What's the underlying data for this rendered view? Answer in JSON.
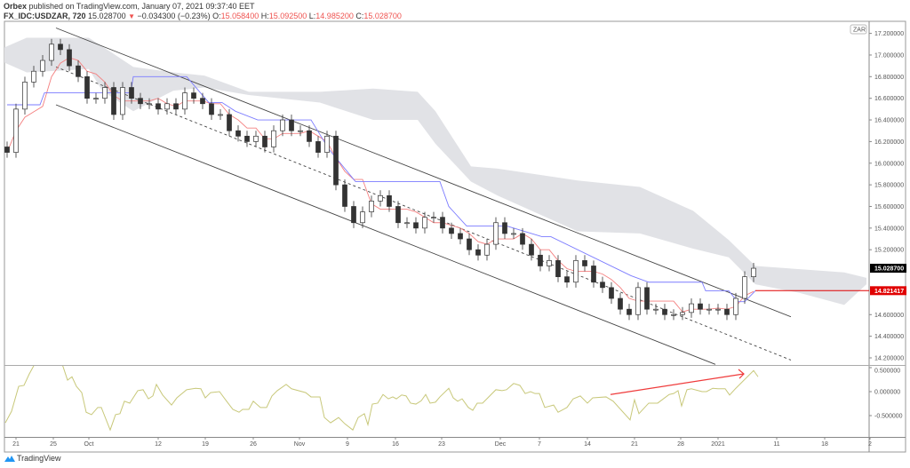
{
  "header": {
    "publisher": "Orbex",
    "published_text": "published on TradingView.com, January 07, 2021 09:37:40 EET",
    "symbol": "FX_IDC:USDZAR, 720",
    "last": "15.028700",
    "change": "−0.034300 (−0.23%)",
    "open_label": "O:",
    "open": "15.058400",
    "high_label": "H:",
    "high": "15.092500",
    "low_label": "L:",
    "low": "14.985200",
    "close_label": "C:",
    "close": "15.028700"
  },
  "footer": {
    "logo_text": "TradingView"
  },
  "colors": {
    "up": "#ffffff",
    "down": "#333333",
    "wick": "#333333",
    "cloud": "#e1e2e6",
    "kijun": "#7b7bff",
    "tenkan": "#f48080",
    "osc": "#c8c87a",
    "arrow": "#ef3b3b",
    "price_line": "#e00000",
    "last_bg": "#000000"
  },
  "chart_data": {
    "type": "candlestick",
    "currency_badge": "ZAR",
    "price_ticks": [
      "17.200000",
      "17.000000",
      "16.800000",
      "16.600000",
      "16.400000",
      "16.200000",
      "16.000000",
      "15.800000",
      "15.600000",
      "15.400000",
      "15.200000",
      "14.600000",
      "14.400000",
      "14.200000"
    ],
    "price_tick_values": [
      17.2,
      17.0,
      16.8,
      16.6,
      16.4,
      16.2,
      16.0,
      15.8,
      15.6,
      15.4,
      15.2,
      14.6,
      14.4,
      14.2
    ],
    "last_price_label": "15.028700",
    "last_price": 15.0287,
    "line_label": "14.821417",
    "line_price": 14.821417,
    "osc_ticks": [
      "0.500000",
      "0.000000",
      "-0.500000"
    ],
    "osc_tick_values": [
      0.5,
      0,
      -0.5
    ],
    "x_labels": [
      "21",
      "25",
      "Oct",
      "12",
      "19",
      "26",
      "Nov",
      "9",
      "16",
      "23",
      "Dec",
      "7",
      "14",
      "21",
      "28",
      "2021",
      "11",
      "18",
      "2"
    ],
    "closes": [
      16.1,
      16.5,
      16.75,
      16.85,
      16.95,
      17.1,
      17.05,
      16.9,
      16.8,
      16.6,
      16.6,
      16.7,
      16.45,
      16.7,
      16.6,
      16.55,
      16.55,
      16.5,
      16.55,
      16.5,
      16.65,
      16.6,
      16.55,
      16.45,
      16.45,
      16.3,
      16.25,
      16.2,
      16.25,
      16.15,
      16.3,
      16.4,
      16.3,
      16.3,
      16.2,
      16.1,
      16.25,
      15.8,
      15.6,
      15.45,
      15.55,
      15.65,
      15.7,
      15.6,
      15.45,
      15.45,
      15.4,
      15.5,
      15.5,
      15.4,
      15.35,
      15.3,
      15.2,
      15.15,
      15.25,
      15.45,
      15.35,
      15.35,
      15.25,
      15.15,
      15.05,
      15.1,
      14.95,
      14.9,
      15.1,
      15.05,
      14.9,
      14.85,
      14.75,
      14.65,
      14.6,
      14.85,
      14.65,
      14.65,
      14.6,
      14.6,
      14.62,
      14.7,
      14.65,
      14.65,
      14.65,
      14.6,
      14.75,
      14.95,
      15.0287
    ],
    "kijun": [
      [
        0,
        16.54
      ],
      [
        3.7,
        16.54
      ],
      [
        4.2,
        16.65
      ],
      [
        13.9,
        16.65
      ],
      [
        14.2,
        16.8
      ],
      [
        20.2,
        16.8
      ],
      [
        22.7,
        16.56
      ],
      [
        24.2,
        16.56
      ],
      [
        25.7,
        16.48
      ],
      [
        28.2,
        16.4
      ],
      [
        34.2,
        16.4
      ],
      [
        36.2,
        16.13
      ],
      [
        39.2,
        15.83
      ],
      [
        48.7,
        15.83
      ],
      [
        49.7,
        15.6
      ],
      [
        51.7,
        15.42
      ],
      [
        56.2,
        15.42
      ],
      [
        60.2,
        15.32
      ],
      [
        61.2,
        15.32
      ],
      [
        70.2,
        14.96
      ],
      [
        72.2,
        14.9
      ],
      [
        78.2,
        14.9
      ],
      [
        78.6,
        14.82
      ],
      [
        81.2,
        14.82
      ],
      [
        82.2,
        14.72
      ],
      [
        83,
        14.72
      ],
      [
        84.2,
        14.82
      ]
    ],
    "cloud_upper": [
      [
        -0.3,
        17.07
      ],
      [
        2.2,
        17.16
      ],
      [
        9.2,
        17.16
      ],
      [
        10.7,
        17.08
      ],
      [
        14.2,
        16.89
      ],
      [
        18.7,
        16.84
      ],
      [
        22.2,
        16.81
      ],
      [
        27.2,
        16.66
      ],
      [
        35.2,
        16.66
      ],
      [
        41.2,
        16.69
      ],
      [
        46.2,
        16.66
      ],
      [
        48.2,
        16.48
      ],
      [
        52.2,
        15.97
      ],
      [
        55.2,
        15.95
      ],
      [
        64.2,
        15.84
      ],
      [
        71.2,
        15.78
      ],
      [
        77.2,
        15.56
      ],
      [
        81.2,
        15.29
      ],
      [
        84.2,
        15.05
      ],
      [
        89.2,
        15.02
      ],
      [
        94.2,
        14.99
      ],
      [
        96.7,
        14.94
      ]
    ],
    "cloud_lower": [
      [
        -0.3,
        16.93
      ],
      [
        2.2,
        16.84
      ],
      [
        9.2,
        16.87
      ],
      [
        10.7,
        16.67
      ],
      [
        14.2,
        16.48
      ],
      [
        18.7,
        16.67
      ],
      [
        22.2,
        16.7
      ],
      [
        27.2,
        16.63
      ],
      [
        35.2,
        16.56
      ],
      [
        41.2,
        16.4
      ],
      [
        46.2,
        16.4
      ],
      [
        48.2,
        16.18
      ],
      [
        52.2,
        15.83
      ],
      [
        55.2,
        15.7
      ],
      [
        64.2,
        15.37
      ],
      [
        71.2,
        15.35
      ],
      [
        77.2,
        15.21
      ],
      [
        81.2,
        15.13
      ],
      [
        84.2,
        14.88
      ],
      [
        89.2,
        14.8
      ],
      [
        94.2,
        14.69
      ],
      [
        96.7,
        14.88
      ]
    ],
    "channel": {
      "upper": [
        [
          5.5,
          17.25
        ],
        [
          88.2,
          14.58
        ]
      ],
      "middle": [
        [
          5.5,
          16.89
        ],
        [
          88.2,
          14.18
        ]
      ],
      "lower": [
        [
          5.5,
          16.54
        ],
        [
          79.7,
          14.14
        ]
      ]
    },
    "oscillator": [
      [
        -0.2,
        -0.65
      ],
      [
        0.5,
        -0.41
      ],
      [
        1.3,
        0.11
      ],
      [
        1.9,
        0.13
      ],
      [
        2.5,
        0.37
      ],
      [
        3.0,
        0.54
      ],
      [
        3.7,
        0.76
      ],
      [
        5.2,
        0.94
      ],
      [
        6.3,
        0.52
      ],
      [
        6.8,
        0.24
      ],
      [
        7.3,
        0.31
      ],
      [
        7.8,
        0.11
      ],
      [
        8.4,
        -0.02
      ],
      [
        8.9,
        -0.43
      ],
      [
        9.5,
        -0.48
      ],
      [
        10.2,
        -0.33
      ],
      [
        10.6,
        -0.33
      ],
      [
        11.6,
        -0.8
      ],
      [
        12.2,
        -0.48
      ],
      [
        12.7,
        -0.46
      ],
      [
        13.2,
        -0.2
      ],
      [
        13.8,
        -0.24
      ],
      [
        14.7,
        0.02
      ],
      [
        15.3,
        0.04
      ],
      [
        15.9,
        -0.15
      ],
      [
        16.4,
        -0.09
      ],
      [
        16.8,
        0.15
      ],
      [
        17.5,
        -0.07
      ],
      [
        18.5,
        -0.28
      ],
      [
        19.1,
        -0.13
      ],
      [
        20.2,
        0.04
      ],
      [
        21.2,
        0.07
      ],
      [
        21.8,
        0.06
      ],
      [
        22.3,
        -0.13
      ],
      [
        22.9,
        -0.02
      ],
      [
        23.9,
        0
      ],
      [
        24.7,
        -0.2
      ],
      [
        25.4,
        -0.37
      ],
      [
        26.1,
        -0.43
      ],
      [
        26.5,
        -0.37
      ],
      [
        27.2,
        -0.37
      ],
      [
        27.7,
        -0.2
      ],
      [
        28.5,
        -0.33
      ],
      [
        29.2,
        -0.33
      ],
      [
        29.8,
        -0.09
      ],
      [
        30.4,
        0.02
      ],
      [
        31.4,
        0.15
      ],
      [
        32.0,
        0.06
      ],
      [
        33.6,
        -0.02
      ],
      [
        34.2,
        -0.11
      ],
      [
        35.2,
        -0.11
      ],
      [
        35.7,
        -0.54
      ],
      [
        36.4,
        -0.65
      ],
      [
        37.3,
        -0.54
      ],
      [
        38.0,
        -0.67
      ],
      [
        38.9,
        -0.8
      ],
      [
        39.5,
        -0.54
      ],
      [
        40.2,
        -0.46
      ],
      [
        40.6,
        -0.69
      ],
      [
        41.1,
        -0.26
      ],
      [
        41.7,
        -0.24
      ],
      [
        42.3,
        -0.06
      ],
      [
        42.9,
        -0.15
      ],
      [
        43.4,
        -0.11
      ],
      [
        43.8,
        -0.15
      ],
      [
        44.4,
        -0.07
      ],
      [
        44.9,
        -0.09
      ],
      [
        45.4,
        -0.24
      ],
      [
        46.0,
        -0.26
      ],
      [
        46.6,
        -0.19
      ],
      [
        47.1,
        -0.06
      ],
      [
        47.6,
        -0.24
      ],
      [
        48.2,
        -0.22
      ],
      [
        48.7,
        -0.11
      ],
      [
        49.7,
        0.07
      ],
      [
        50.2,
        -0.13
      ],
      [
        50.7,
        -0.2
      ],
      [
        51.2,
        -0.15
      ],
      [
        51.9,
        -0.33
      ],
      [
        52.4,
        -0.39
      ],
      [
        52.9,
        -0.24
      ],
      [
        53.5,
        -0.24
      ],
      [
        55.0,
        0.04
      ],
      [
        55.7,
        0.02
      ],
      [
        56.2,
        0.04
      ],
      [
        57.0,
        0.17
      ],
      [
        57.7,
        0.13
      ],
      [
        58.3,
        -0.04
      ],
      [
        58.9,
        0
      ],
      [
        59.4,
        -0.04
      ],
      [
        59.9,
        -0.04
      ],
      [
        60.5,
        -0.33
      ],
      [
        61.5,
        -0.28
      ],
      [
        62.0,
        -0.43
      ],
      [
        63.0,
        -0.33
      ],
      [
        63.7,
        -0.15
      ],
      [
        64.5,
        -0.09
      ],
      [
        65.3,
        -0.24
      ],
      [
        65.9,
        -0.13
      ],
      [
        67.4,
        -0.11
      ],
      [
        68.2,
        -0.2
      ],
      [
        70.1,
        -0.59
      ],
      [
        70.6,
        -0.17
      ],
      [
        71.1,
        -0.46
      ],
      [
        72.2,
        -0.24
      ],
      [
        73.2,
        -0.24
      ],
      [
        74.5,
        -0.06
      ],
      [
        75.0,
        -0.04
      ],
      [
        75.5,
        0.02
      ],
      [
        75.9,
        -0.3
      ],
      [
        76.5,
        0.04
      ],
      [
        77.0,
        0.06
      ],
      [
        78.2,
        0
      ],
      [
        78.7,
        0
      ],
      [
        79.4,
        0.07
      ],
      [
        80.0,
        0.06
      ],
      [
        80.8,
        0.06
      ],
      [
        81.3,
        -0.07
      ],
      [
        82.0,
        0.07
      ],
      [
        84.0,
        0.44
      ],
      [
        84.5,
        0.31
      ]
    ],
    "arrow": [
      [
        67.9,
        -0.06
      ],
      [
        82.9,
        0.37
      ]
    ]
  }
}
